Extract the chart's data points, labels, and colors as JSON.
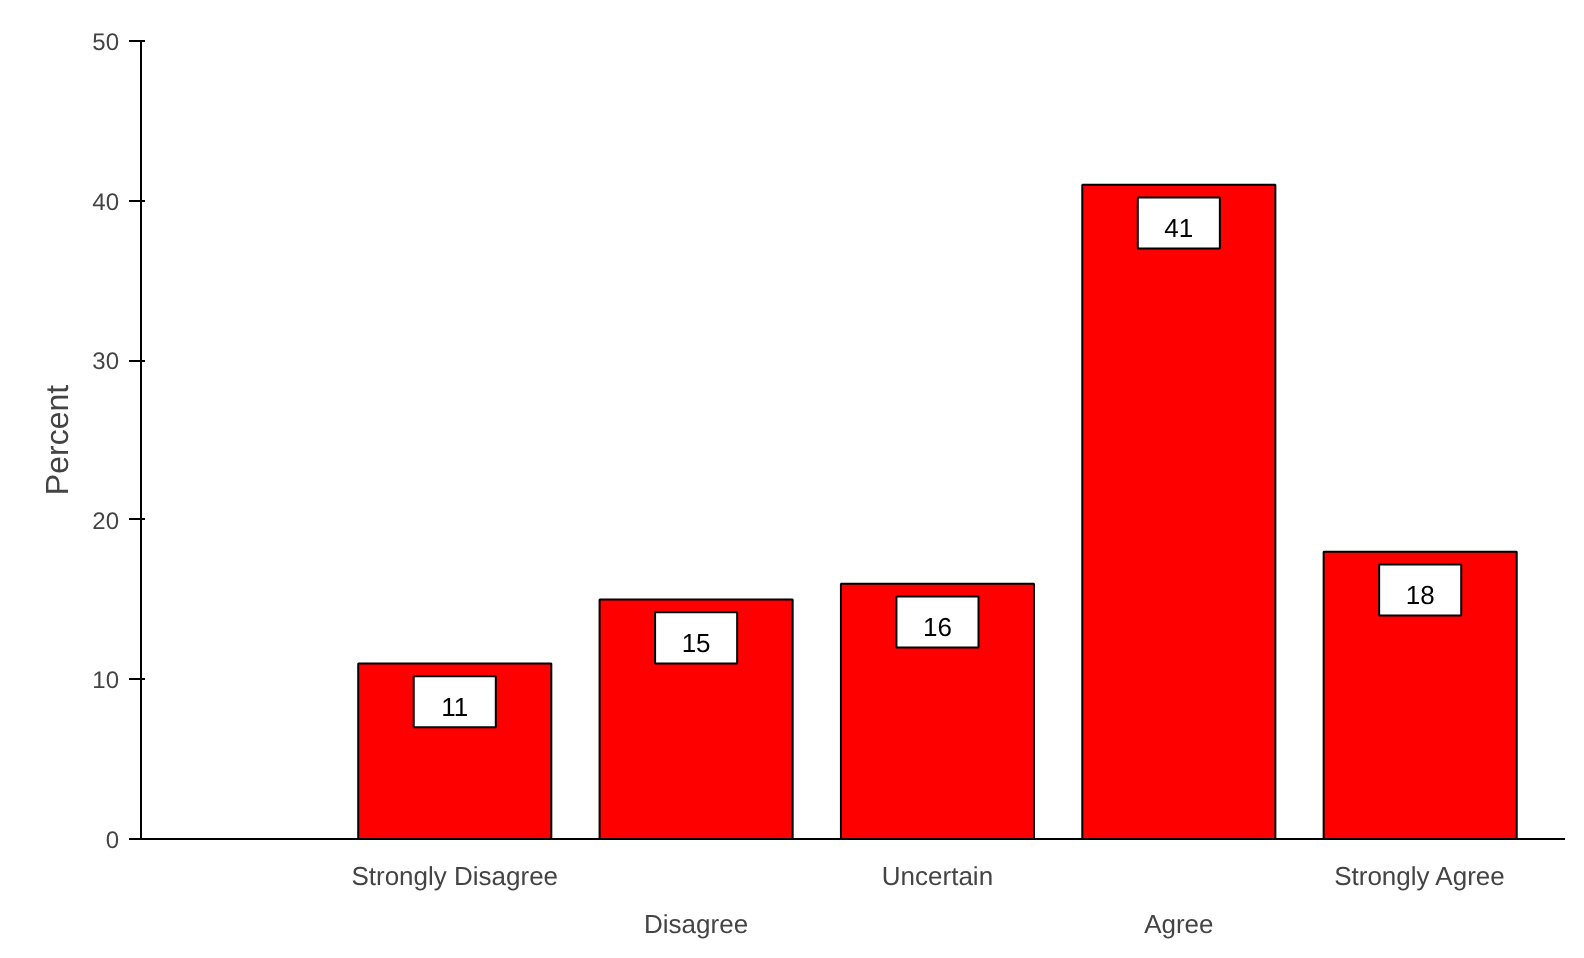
{
  "chart_data": {
    "type": "bar",
    "ylabel": "Percent",
    "categories": [
      "Strongly Disagree",
      "Disagree",
      "Uncertain",
      "Agree",
      "Strongly Agree"
    ],
    "values": [
      11,
      15,
      16,
      41,
      18
    ],
    "color": "#ff0000",
    "ylim": [
      0,
      50
    ],
    "yticks": [
      0,
      10,
      20,
      30,
      40,
      50
    ],
    "grid": false,
    "data_labels": true
  }
}
